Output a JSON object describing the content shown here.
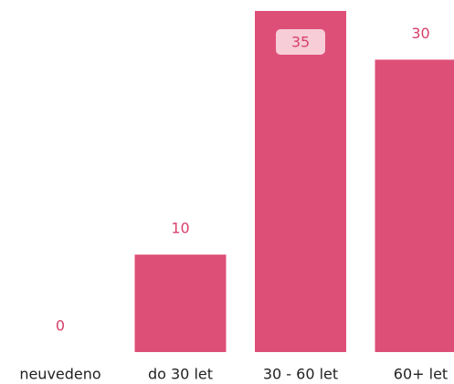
{
  "chart_data": {
    "type": "bar",
    "categories": [
      "neuvedeno",
      "do 30 let",
      "30 - 60 let",
      "60+ let"
    ],
    "values": [
      0,
      10,
      35,
      30
    ],
    "color": "#de4f77",
    "ylim": [
      0,
      35
    ]
  }
}
